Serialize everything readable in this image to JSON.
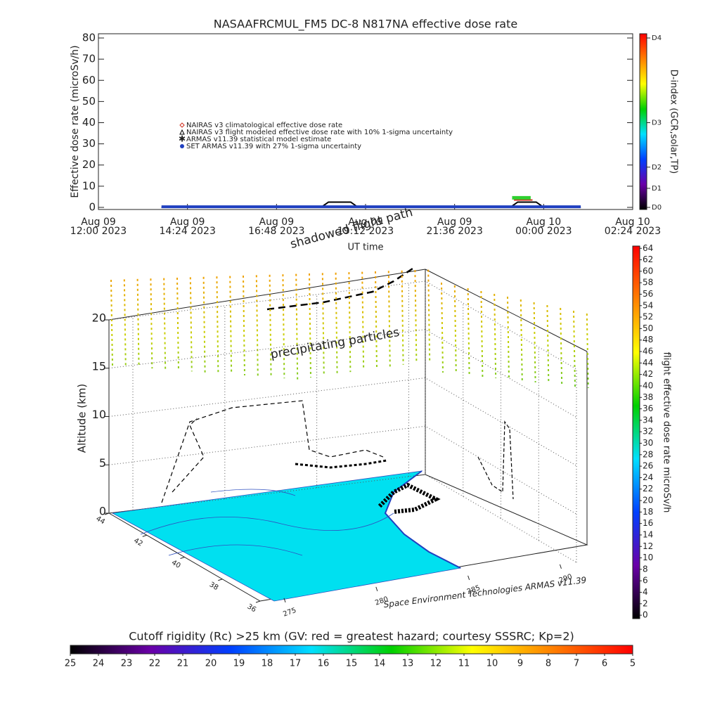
{
  "chart_data": [
    {
      "type": "line",
      "title": "NASAAFRCMUL_FM5 DC-8   N817NA effective dose rate",
      "ylabel": "Effective dose rate (microSv/h)",
      "xlabel": "UT time",
      "xlim": [
        0,
        14.4
      ],
      "xticks": [
        {
          "value": 0,
          "label": "Aug 09\n12:00 2023"
        },
        {
          "value": 2.4,
          "label": "Aug 09\n14:24 2023"
        },
        {
          "value": 4.8,
          "label": "Aug 09\n16:48 2023"
        },
        {
          "value": 7.2,
          "label": "Aug 09\n19:12 2023"
        },
        {
          "value": 9.6,
          "label": "Aug 09\n21:36 2023"
        },
        {
          "value": 12.0,
          "label": "Aug 10\n00:00 2023"
        },
        {
          "value": 14.4,
          "label": "Aug 10\n02:24 2023"
        }
      ],
      "ylim": [
        -1,
        82
      ],
      "yticks": [
        0,
        10,
        20,
        30,
        40,
        50,
        60,
        70,
        80
      ],
      "y2label": "D-index (GCR,solar,TP)",
      "y2lim": [
        -1,
        82
      ],
      "y2ticks": [
        {
          "value": 0,
          "label": "D0"
        },
        {
          "value": 9,
          "label": "D1"
        },
        {
          "value": 19,
          "label": "D2"
        },
        {
          "value": 40,
          "label": "D3"
        },
        {
          "value": 80,
          "label": "D4"
        }
      ],
      "colorscale": [
        "#000000",
        "#6a00a8",
        "#0040ff",
        "#00e0ff",
        "#00d000",
        "#ffff00",
        "#ff8000",
        "#ff0000"
      ],
      "series": [
        {
          "name": "NAIRAS v3 climatological effective dose rate",
          "color": "#d03020",
          "marker": "diamond",
          "x": [
            11.2,
            11.7
          ],
          "values": [
            3.5,
            3.5
          ]
        },
        {
          "name": "NAIRAS v3 flight modeled effective dose rate with 10% 1-sigma uncertainty",
          "color": "#000000",
          "marker": "triangle",
          "x": [
            1.7,
            6.0,
            6.2,
            6.8,
            7.0,
            11.1,
            11.3,
            11.8,
            12.0,
            13.0
          ],
          "values": [
            0,
            0,
            2.5,
            2.5,
            0,
            0,
            2.5,
            2.5,
            0,
            0
          ]
        },
        {
          "name": "ARMAS v11.39 statistical model estimate",
          "color": "#30d030",
          "marker": "star",
          "x": [
            11.15,
            11.65
          ],
          "values": [
            4.5,
            4.5
          ]
        },
        {
          "name": "SET ARMAS v11.39 with 27% 1-sigma uncertainty",
          "color": "#2040c0",
          "marker": "circle",
          "x": [
            1.7,
            4,
            6,
            8,
            10,
            12,
            13.0
          ],
          "values": [
            0.3,
            0.3,
            0.3,
            0.3,
            0.3,
            0.3,
            0.3
          ]
        }
      ]
    },
    {
      "type": "scatter3d",
      "zlabel": "Altitude (km)",
      "zlim": [
        0,
        20
      ],
      "zticks": [
        0,
        5,
        10,
        15,
        20
      ],
      "latlim": [
        44,
        36
      ],
      "latticks": [
        44,
        42,
        40,
        38,
        36
      ],
      "lonlim": [
        273.7,
        290.9
      ],
      "lonticks": [
        275,
        280,
        285,
        290
      ],
      "annotations": [
        "precipitating particles",
        "shadowed flight path",
        "Space Environment Technologies ARMAS v11.39"
      ]
    },
    {
      "type": "colorbar",
      "label": "flight effective dose rate microSv/h",
      "lim": [
        -0.6,
        64.4
      ],
      "ticks": [
        0,
        2,
        4,
        6,
        8,
        10,
        12,
        14,
        16,
        18,
        20,
        22,
        24,
        26,
        28,
        30,
        32,
        34,
        36,
        38,
        40,
        42,
        44,
        46,
        48,
        50,
        52,
        54,
        56,
        58,
        60,
        62,
        64
      ],
      "colorscale": [
        "#000000",
        "#6a00a8",
        "#0040ff",
        "#00e0ff",
        "#00d000",
        "#ffff00",
        "#ff8000",
        "#ff0000"
      ]
    },
    {
      "type": "colorbar",
      "label": "Cutoff rigidity (Rc) >25 km (GV: red = greatest hazard; courtesy SSSRC; Kp=2)",
      "lim": [
        25,
        5
      ],
      "ticks": [
        25,
        24,
        23,
        22,
        21,
        20,
        19,
        18,
        17,
        16,
        15,
        14,
        13,
        12,
        11,
        10,
        9,
        8,
        7,
        6,
        5
      ],
      "colorscale": [
        "#000000",
        "#6a00a8",
        "#0040ff",
        "#00e0ff",
        "#00d000",
        "#ffff00",
        "#ff8000",
        "#ff0000"
      ]
    }
  ]
}
